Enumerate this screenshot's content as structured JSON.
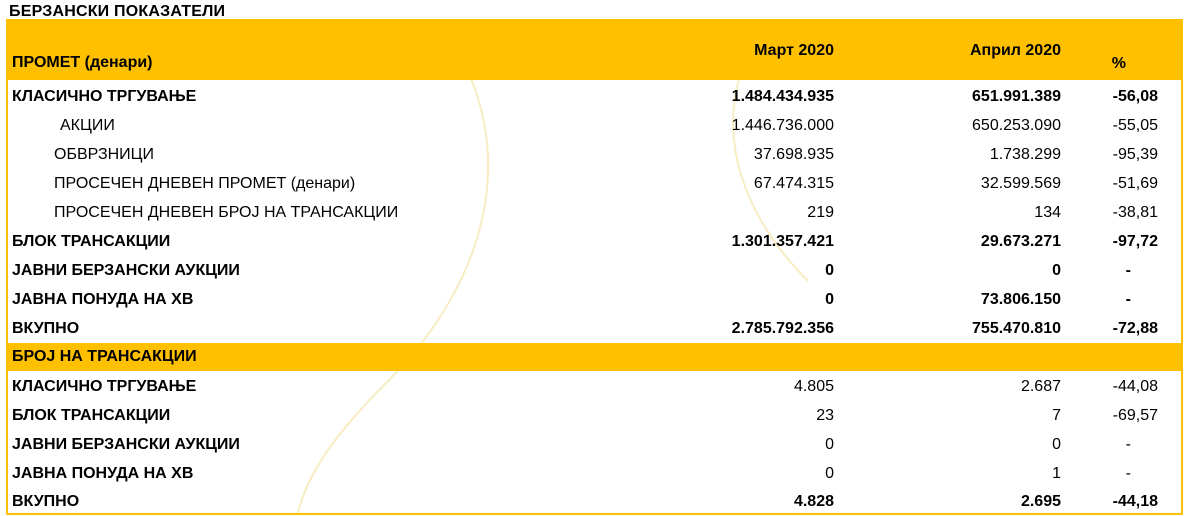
{
  "title": "БЕРЗАНСКИ ПОКАЗАТЕЛИ",
  "colors": {
    "band": "#ffc000",
    "text": "#000000"
  },
  "header": {
    "label": "ПРОМЕТ (денари)",
    "col_march": "Март 2020",
    "col_april": "Април  2020",
    "col_pct": "%"
  },
  "turnover_rows": [
    {
      "label": "КЛАСИЧНО ТРГУВАЊЕ",
      "march": "1.484.434.935",
      "april": "651.991.389",
      "pct": "-56,08"
    },
    {
      "label": "АКЦИИ",
      "march": "1.446.736.000",
      "april": "650.253.090",
      "pct": "-55,05"
    },
    {
      "label": "ОБВРЗНИЦИ",
      "march": "37.698.935",
      "april": "1.738.299",
      "pct": "-95,39"
    },
    {
      "label": "ПРОСЕЧЕН ДНЕВЕН ПРОМЕТ (денари)",
      "march": "67.474.315",
      "april": "32.599.569",
      "pct": "-51,69"
    },
    {
      "label": "ПРОСЕЧЕН ДНЕВЕН БРОЈ НА ТРАНСАКЦИИ",
      "march": "219",
      "april": "134",
      "pct": "-38,81"
    },
    {
      "label": "БЛОК ТРАНСАКЦИИ",
      "march": "1.301.357.421",
      "april": "29.673.271",
      "pct": "-97,72"
    },
    {
      "label": "ЈАВНИ БЕРЗАНСКИ АУКЦИИ",
      "march": "0",
      "april": "0",
      "pct": "-"
    },
    {
      "label": "ЈАВНА ПОНУДА НА ХВ",
      "march": "0",
      "april": "73.806.150",
      "pct": "-"
    },
    {
      "label": "ВКУПНО",
      "march": "2.785.792.356",
      "april": "755.470.810",
      "pct": "-72,88"
    }
  ],
  "transactions_header": "БРОЈ НА ТРАНСАКЦИИ",
  "transaction_rows": [
    {
      "label": "КЛАСИЧНО ТРГУВАЊЕ",
      "march": "4.805",
      "april": "2.687",
      "pct": "-44,08"
    },
    {
      "label": "БЛОК ТРАНСАКЦИИ",
      "march": "23",
      "april": "7",
      "pct": "-69,57"
    },
    {
      "label": "ЈАВНИ БЕРЗАНСКИ АУКЦИИ",
      "march": "0",
      "april": "0",
      "pct": "-"
    },
    {
      "label": "ЈАВНА ПОНУДА НА ХВ",
      "march": "0",
      "april": "1",
      "pct": "-"
    },
    {
      "label": "ВКУПНО",
      "march": "4.828",
      "april": "2.695",
      "pct": "-44,18"
    }
  ]
}
